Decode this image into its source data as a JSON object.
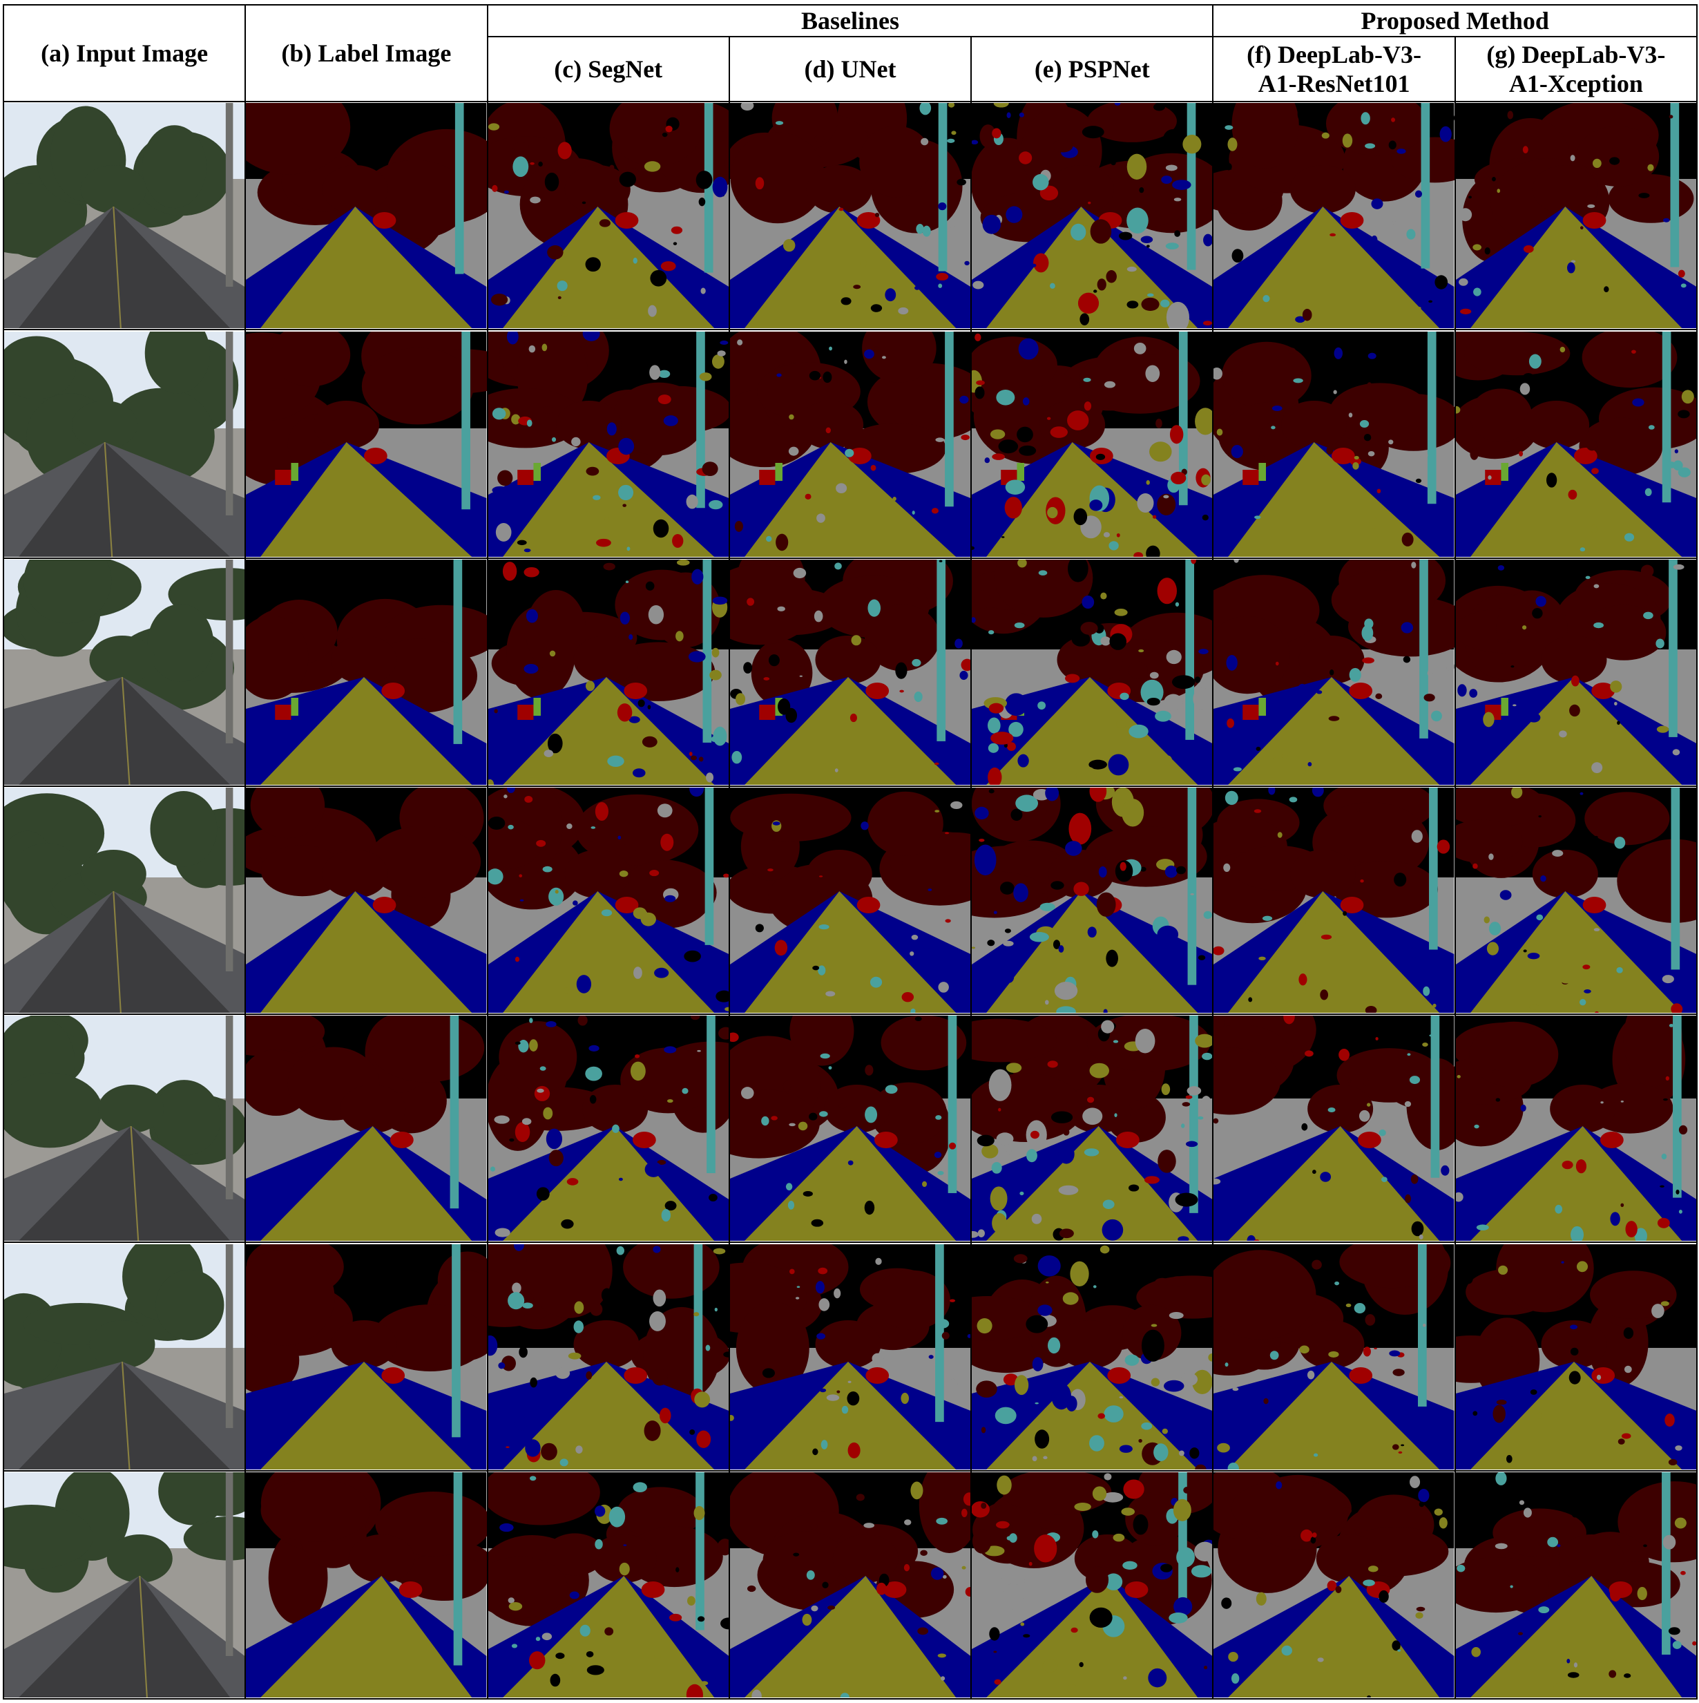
{
  "headers": {
    "input": "(a) Input Image",
    "label": "(b) Label Image",
    "baselines": "Baselines",
    "proposed": "Proposed Method",
    "segnet": "(c) SegNet",
    "unet": "(d) UNet",
    "pspnet": "(e) PSPNet",
    "resnet": "(f) DeepLab-V3-\nA1-ResNet101",
    "xception": "(g) DeepLab-V3-\nA1-Xception"
  },
  "class_colors": {
    "sky": "#000000",
    "vegetation": "#3d0000",
    "building_wall": "#8f8f8f",
    "road": "#84821f",
    "sidewalk": "#00008b",
    "car": "#a00000",
    "person": "#6aa832",
    "pole": "#4aa19e"
  },
  "photo_colors": {
    "sky": "#dfe8f2",
    "trees": "#33452c",
    "wall": "#9c9a95",
    "road": "#3c3c3e"
  },
  "rows": 7
}
